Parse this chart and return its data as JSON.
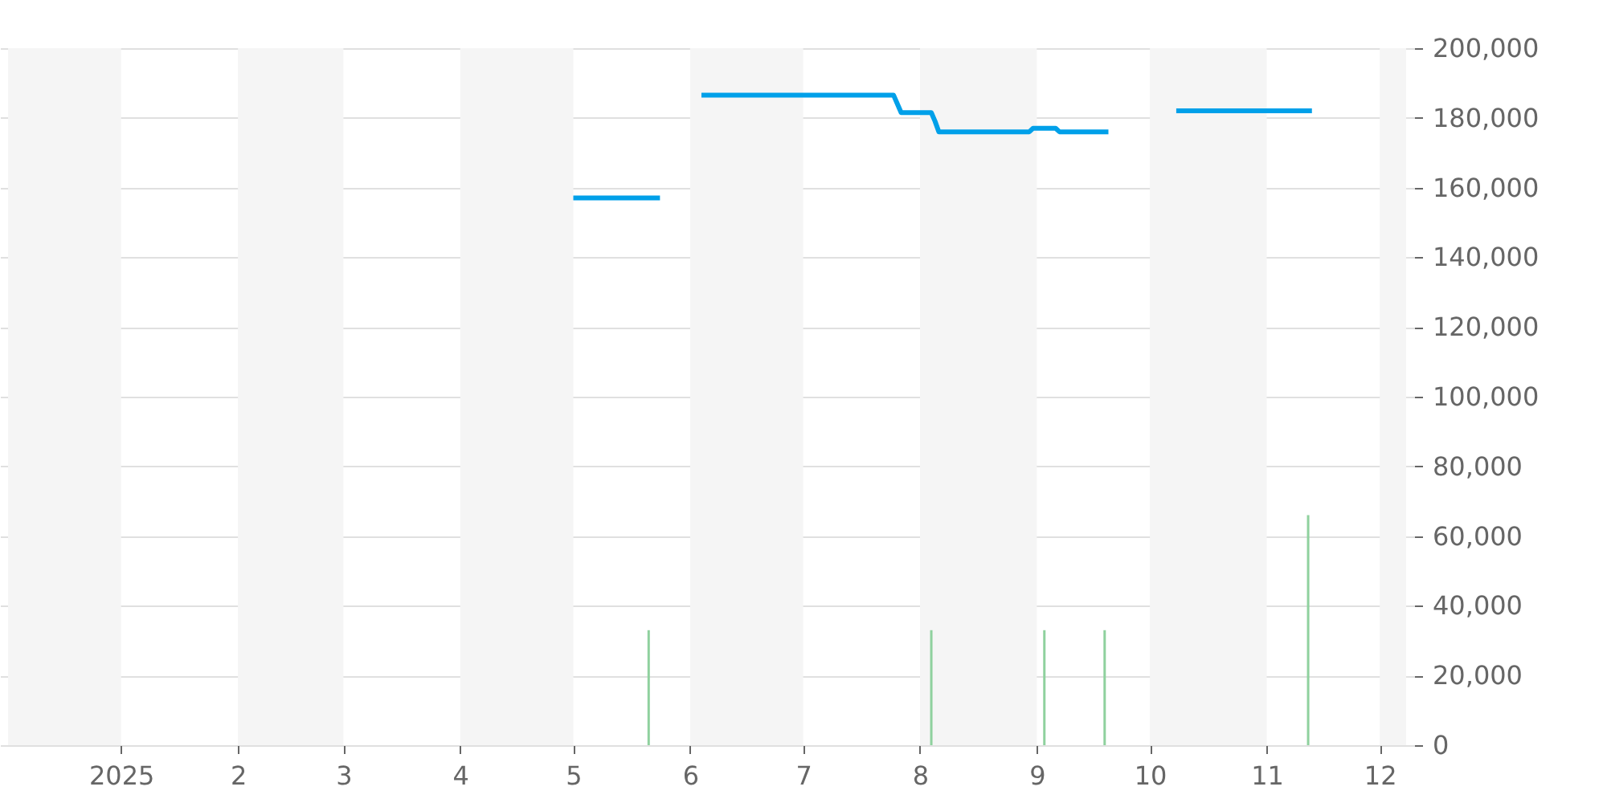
{
  "chart_data": {
    "type": "line",
    "xlim": [
      "2024-12-02",
      "2025-12-08"
    ],
    "xticks": [
      {
        "value": "2025-01-01",
        "label": "2025"
      },
      {
        "value": "2025-02-01",
        "label": "2"
      },
      {
        "value": "2025-03-01",
        "label": "3"
      },
      {
        "value": "2025-04-01",
        "label": "4"
      },
      {
        "value": "2025-05-01",
        "label": "5"
      },
      {
        "value": "2025-06-01",
        "label": "6"
      },
      {
        "value": "2025-07-01",
        "label": "7"
      },
      {
        "value": "2025-08-01",
        "label": "8"
      },
      {
        "value": "2025-09-01",
        "label": "9"
      },
      {
        "value": "2025-10-01",
        "label": "10"
      },
      {
        "value": "2025-11-01",
        "label": "11"
      },
      {
        "value": "2025-12-01",
        "label": "12"
      }
    ],
    "ylim": [
      0,
      200000
    ],
    "yticks": [
      {
        "value": 0,
        "label": "0"
      },
      {
        "value": 20000,
        "label": "20,000"
      },
      {
        "value": 40000,
        "label": "40,000"
      },
      {
        "value": 60000,
        "label": "60,000"
      },
      {
        "value": 80000,
        "label": "80,000"
      },
      {
        "value": 100000,
        "label": "100,000"
      },
      {
        "value": 120000,
        "label": "120,000"
      },
      {
        "value": 140000,
        "label": "140,000"
      },
      {
        "value": 160000,
        "label": "160,000"
      },
      {
        "value": 180000,
        "label": "180,000"
      },
      {
        "value": 200000,
        "label": "200,000"
      }
    ],
    "grid": "y",
    "marker": "none",
    "line_style": "solid",
    "bands": [
      {
        "axis": "x",
        "from": "2024-12-02",
        "to": "2025-01-01",
        "color": "#f5f5f5"
      },
      {
        "axis": "x",
        "from": "2025-02-01",
        "to": "2025-03-01",
        "color": "#f5f5f5"
      },
      {
        "axis": "x",
        "from": "2025-04-01",
        "to": "2025-05-01",
        "color": "#f5f5f5"
      },
      {
        "axis": "x",
        "from": "2025-06-01",
        "to": "2025-07-01",
        "color": "#f5f5f5"
      },
      {
        "axis": "x",
        "from": "2025-08-01",
        "to": "2025-09-01",
        "color": "#f5f5f5"
      },
      {
        "axis": "x",
        "from": "2025-10-01",
        "to": "2025-11-01",
        "color": "#f5f5f5"
      },
      {
        "axis": "x",
        "from": "2025-12-01",
        "to": "2025-12-08",
        "color": "#f5f5f5"
      }
    ],
    "series": [
      {
        "color": "#00a0e9",
        "x": [
          "2025-05-01",
          "2025-05-24",
          "2025-05-29",
          "2025-06-04",
          "2025-07-25",
          "2025-07-27",
          "2025-08-04",
          "2025-08-05",
          "2025-08-06",
          "2025-08-30",
          "2025-08-31",
          "2025-09-06",
          "2025-09-07",
          "2025-09-20",
          "2025-09-30",
          "2025-10-08",
          "2025-11-13"
        ],
        "values": [
          157000,
          157000,
          null,
          186500,
          186500,
          181500,
          181500,
          179000,
          176000,
          176000,
          177000,
          177000,
          176000,
          176000,
          null,
          182000,
          182000
        ]
      },
      {
        "type": "bar",
        "color": "#8fd19e",
        "x": [
          "2025-05-21",
          "2025-08-04",
          "2025-09-03",
          "2025-09-19",
          "2025-11-12"
        ],
        "values": [
          33000,
          33000,
          33000,
          33000,
          66000
        ]
      }
    ]
  }
}
